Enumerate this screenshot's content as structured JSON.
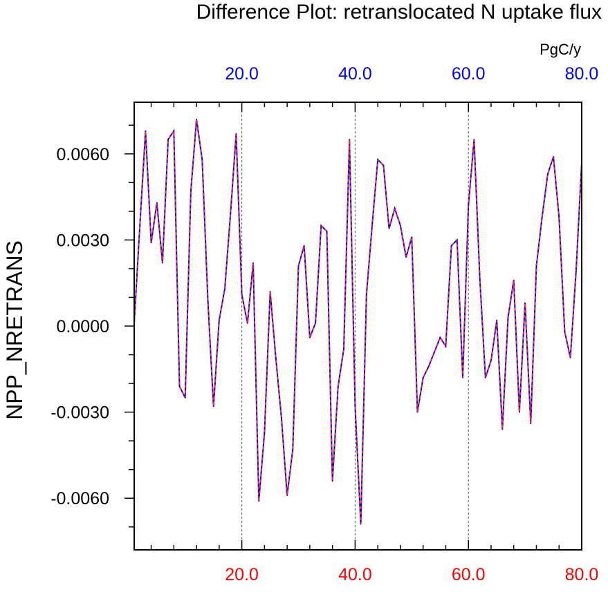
{
  "title": "Difference Plot: retranslocated N uptake flux",
  "colors": {
    "top_ticks": "#0000ff",
    "bottom_ticks": "#ff0000",
    "line_blue": "#0000ff",
    "line_red": "#ff2a2a",
    "frame": "#000000",
    "grid": "#555555"
  },
  "chart_data": {
    "type": "line",
    "title": "Difference Plot: retranslocated N uptake flux",
    "ylabel": "NPP_NRETRANS",
    "units": "PgC/y",
    "xlim": [
      1,
      80
    ],
    "ylim": [
      -0.0078,
      0.0078
    ],
    "x_ticks": [
      20,
      40,
      60,
      80
    ],
    "x_tick_labels": [
      "20.0",
      "40.0",
      "60.0",
      "80.0"
    ],
    "y_ticks": [
      0.006,
      0.003,
      0.0,
      -0.003,
      -0.006
    ],
    "y_tick_labels": [
      "0.0060",
      "0.0030",
      "0.0000",
      "-0.0030",
      "-0.0060"
    ],
    "grid": "vertical dashed at x ticks",
    "series": [
      {
        "line_style": "blue solid with red dashes overlaid",
        "x": [
          1,
          2,
          3,
          4,
          5,
          6,
          7,
          8,
          9,
          10,
          11,
          12,
          13,
          14,
          15,
          16,
          17,
          18,
          19,
          20,
          21,
          22,
          23,
          24,
          25,
          26,
          27,
          28,
          29,
          30,
          31,
          32,
          33,
          34,
          35,
          36,
          37,
          38,
          39,
          40,
          41,
          42,
          43,
          44,
          45,
          46,
          47,
          48,
          49,
          50,
          51,
          52,
          53,
          54,
          55,
          56,
          57,
          58,
          59,
          60,
          61,
          62,
          63,
          64,
          65,
          66,
          67,
          68,
          69,
          70,
          71,
          72,
          73,
          74,
          75,
          76,
          77,
          78,
          79,
          80
        ],
        "values": [
          0.0001,
          0.0035,
          0.0068,
          0.0029,
          0.0043,
          0.0022,
          0.0065,
          0.0068,
          -0.0021,
          -0.0025,
          0.0047,
          0.0072,
          0.0058,
          0.0009,
          -0.0028,
          0.0002,
          0.0013,
          0.0039,
          0.0067,
          0.0011,
          0.0001,
          0.0022,
          -0.0061,
          -0.0037,
          0.0012,
          -0.0011,
          -0.0032,
          -0.0059,
          -0.0043,
          0.0021,
          0.0028,
          -0.0004,
          0.0001,
          0.0035,
          0.0033,
          -0.0054,
          -0.0021,
          -0.0008,
          0.0065,
          -0.0028,
          -0.0069,
          0.0011,
          0.0035,
          0.0058,
          0.0056,
          0.0034,
          0.0041,
          0.0035,
          0.0024,
          0.0031,
          -0.003,
          -0.0018,
          -0.0014,
          -0.0009,
          -0.0004,
          -0.0007,
          0.0028,
          0.003,
          -0.0018,
          0.0042,
          0.0065,
          0.0017,
          -0.0018,
          -0.0012,
          0.0002,
          -0.0036,
          0.0003,
          0.0016,
          -0.003,
          0.0008,
          -0.0034,
          0.0021,
          0.0038,
          0.0053,
          0.0059,
          0.0038,
          -0.0002,
          -0.0011,
          0.0019,
          0.0057
        ]
      }
    ]
  }
}
